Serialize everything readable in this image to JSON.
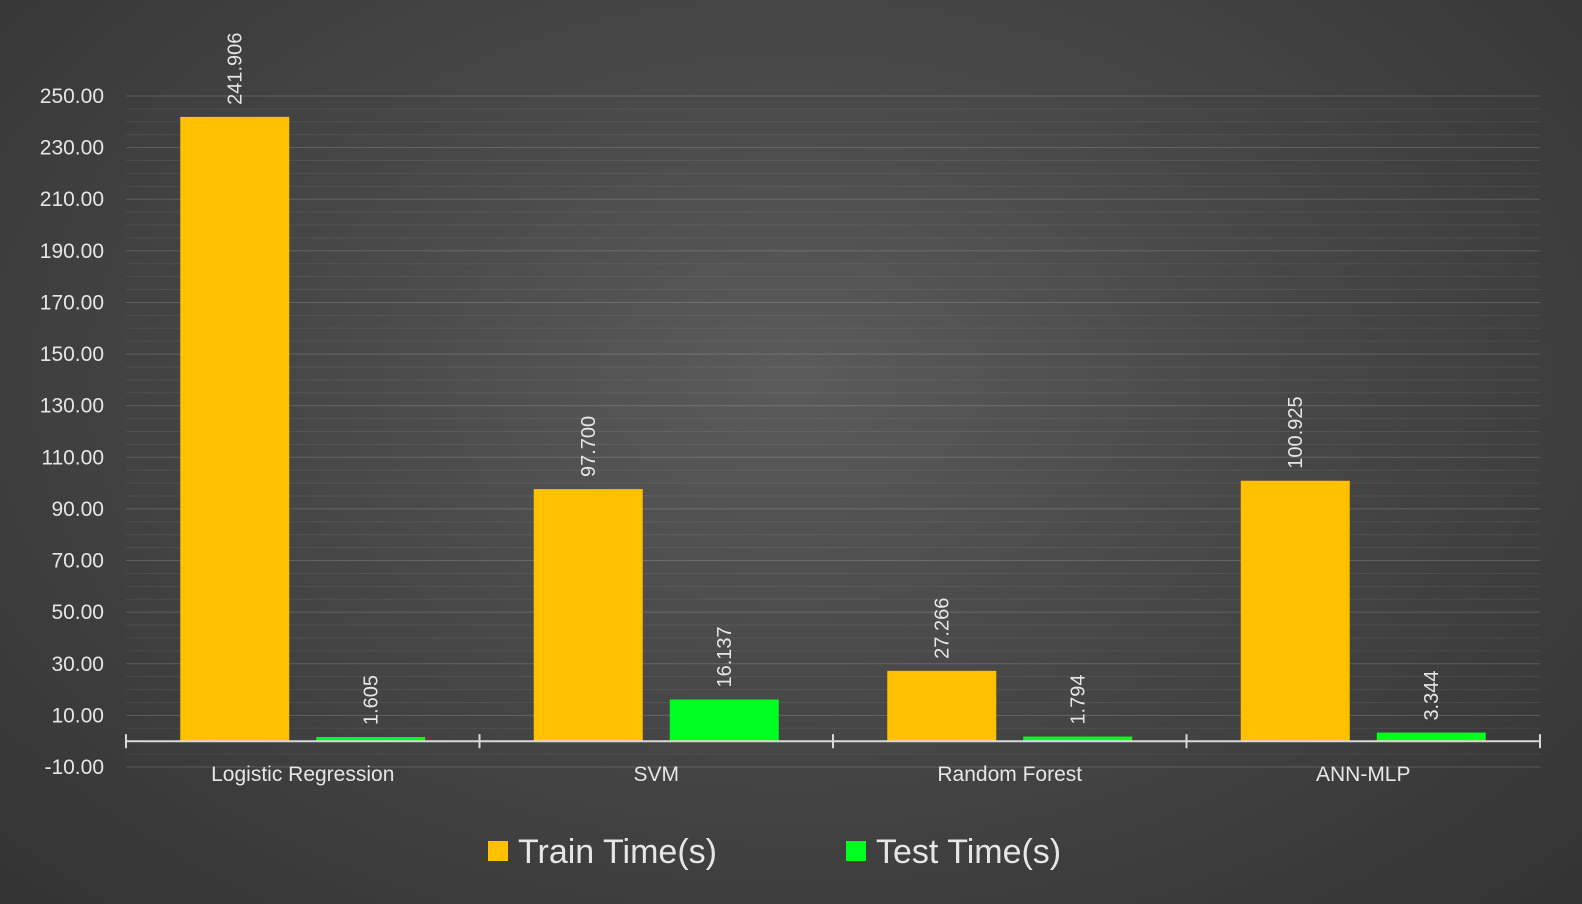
{
  "chart_data": {
    "type": "bar",
    "categories": [
      "Logistic Regression",
      "SVM",
      "Random Forest",
      "ANN-MLP"
    ],
    "series": [
      {
        "name": "Train Time(s)",
        "values": [
          241.906,
          97.7,
          27.266,
          100.925
        ],
        "labels": [
          "241.906",
          "97.700",
          "27.266",
          "100.925"
        ],
        "color": "#ffc000"
      },
      {
        "name": "Test Time(s)",
        "values": [
          1.605,
          16.137,
          1.794,
          3.344
        ],
        "labels": [
          "1.605",
          "16.137",
          "1.794",
          "3.344"
        ],
        "color": "#00ff21"
      }
    ],
    "y_ticks": [
      250,
      230,
      210,
      190,
      170,
      150,
      130,
      110,
      90,
      70,
      50,
      30,
      10,
      -10
    ],
    "y_tick_labels": [
      "250.00",
      "230.00",
      "210.00",
      "190.00",
      "170.00",
      "150.00",
      "130.00",
      "110.00",
      "90.00",
      "70.00",
      "50.00",
      "30.00",
      "10.00",
      "-10.00"
    ],
    "ylim": [
      -10,
      250
    ],
    "title": "",
    "xlabel": "",
    "ylabel": "",
    "grid": true,
    "legend_position": "bottom"
  }
}
